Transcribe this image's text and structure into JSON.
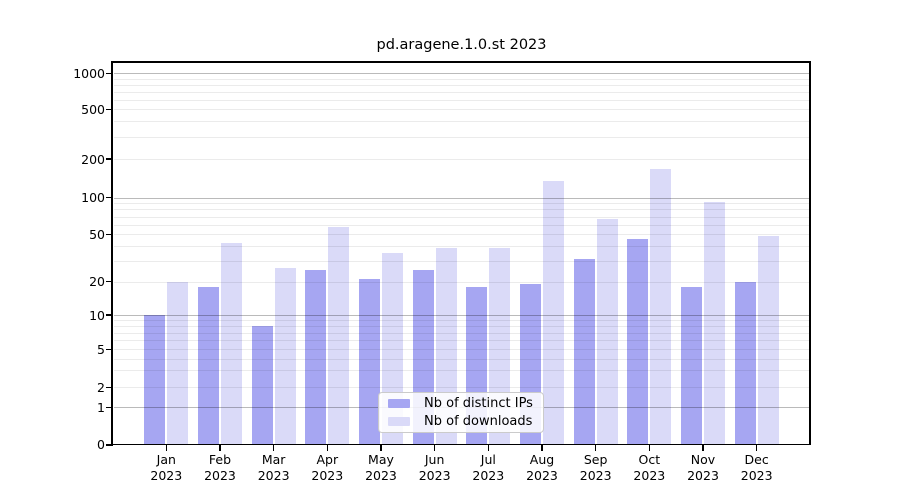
{
  "title": "pd.aragene.1.0.st 2023",
  "legend": {
    "items": [
      {
        "label": "Nb of distinct IPs",
        "color": "#a6a6f2"
      },
      {
        "label": "Nb of downloads",
        "color": "#dadaf8"
      }
    ]
  },
  "chart_data": {
    "type": "bar",
    "title": "pd.aragene.1.0.st 2023",
    "categories": [
      "Jan 2023",
      "Feb 2023",
      "Mar 2023",
      "Apr 2023",
      "May 2023",
      "Jun 2023",
      "Jul 2023",
      "Aug 2023",
      "Sep 2023",
      "Oct 2023",
      "Nov 2023",
      "Dec 2023"
    ],
    "series": [
      {
        "name": "Nb of distinct IPs",
        "color": "#a6a6f2",
        "values": [
          10,
          18,
          8,
          25,
          21,
          25,
          18,
          19,
          31,
          46,
          18,
          20
        ]
      },
      {
        "name": "Nb of downloads",
        "color": "#dadaf8",
        "values": [
          20,
          42,
          26,
          57,
          35,
          38,
          38,
          135,
          67,
          168,
          92,
          48
        ]
      }
    ],
    "xlabel": "",
    "ylabel": "",
    "y_axis": {
      "scale": "log-like (1-2-5 steps, compressed below 10, linear 0-1)",
      "ticks": [
        0,
        1,
        2,
        5,
        10,
        20,
        50,
        100,
        200,
        500,
        1000
      ],
      "range": [
        0,
        1000
      ]
    },
    "grid": "horizontal major (1,10,100,1000) + minor, drawn over translucent bars",
    "legend_position": "lower center inside plot"
  }
}
